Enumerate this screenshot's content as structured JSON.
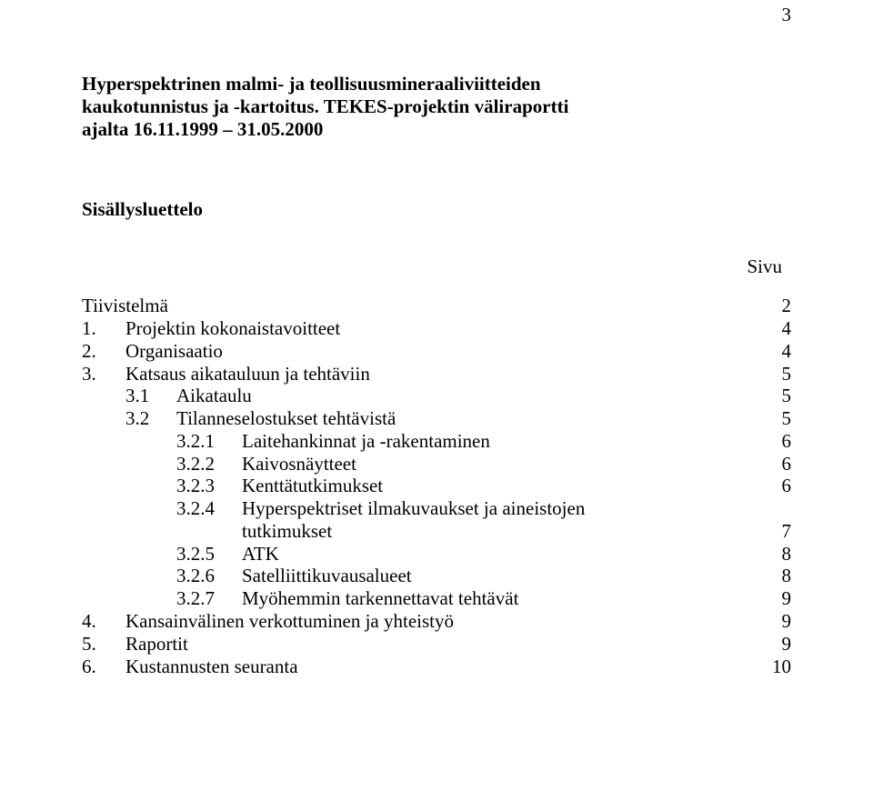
{
  "page_number": "3",
  "title_lines": [
    "Hyperspektrinen malmi- ja teollisuusmineraaliviitteiden",
    "kaukotunnistus ja -kartoitus. TEKES-projektin väliraportti",
    "ajalta 16.11.1999 – 31.05.2000"
  ],
  "toc_heading": "Sisällysluettelo",
  "page_label": "Sivu",
  "toc": [
    {
      "level": 0,
      "num": "",
      "text": "Tiivistelmä",
      "page": "2"
    },
    {
      "level": 1,
      "num": "1.",
      "text": "Projektin kokonaistavoitteet",
      "page": "4"
    },
    {
      "level": 1,
      "num": "2.",
      "text": "Organisaatio",
      "page": "4"
    },
    {
      "level": 1,
      "num": "3.",
      "text": "Katsaus  aikatauluun ja tehtäviin",
      "page": "5"
    },
    {
      "level": 2,
      "num": "3.1",
      "text": "Aikataulu",
      "page": "5"
    },
    {
      "level": 2,
      "num": "3.2",
      "text": "Tilanneselostukset tehtävistä",
      "page": "5"
    },
    {
      "level": 3,
      "num": "3.2.1",
      "text": "Laitehankinnat ja -rakentaminen",
      "page": "6"
    },
    {
      "level": 3,
      "num": "3.2.2",
      "text": "Kaivosnäytteet",
      "page": "6"
    },
    {
      "level": 3,
      "num": "3.2.3",
      "text": "Kenttätutkimukset",
      "page": "6"
    },
    {
      "level": 3,
      "num": "3.2.4",
      "text": "Hyperspektriset ilmakuvaukset ja aineistojen",
      "page": ""
    },
    {
      "level": "3c",
      "num": "",
      "text": "tutkimukset",
      "page": "7"
    },
    {
      "level": 3,
      "num": "3.2.5",
      "text": "ATK",
      "page": "8"
    },
    {
      "level": 3,
      "num": "3.2.6",
      "text": "Satelliittikuvausalueet",
      "page": "8"
    },
    {
      "level": 3,
      "num": "3.2.7",
      "text": "Myöhemmin tarkennettavat tehtävät",
      "page": "9"
    },
    {
      "level": 1,
      "num": "4.",
      "text": "Kansainvälinen verkottuminen ja yhteistyö",
      "page": "9"
    },
    {
      "level": 1,
      "num": "5.",
      "text": "Raportit",
      "page": "9"
    },
    {
      "level": 1,
      "num": "6.",
      "text": "Kustannusten seuranta",
      "page": "10"
    }
  ]
}
